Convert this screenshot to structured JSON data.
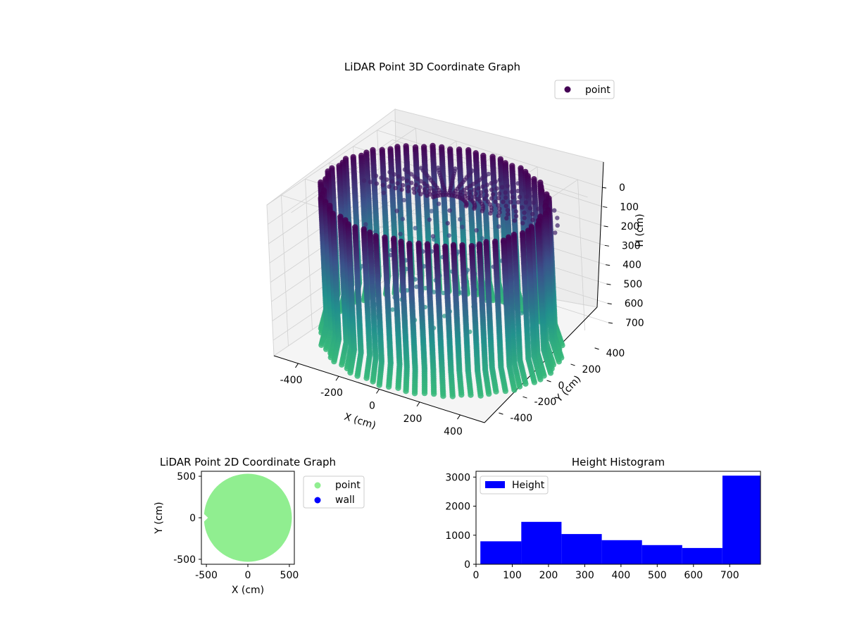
{
  "figure": {
    "background": "#ffffff"
  },
  "chart_data": [
    {
      "id": "scatter3d",
      "type": "scatter",
      "projection": "3d",
      "title": "LiDAR Point 3D Coordinate Graph",
      "xlabel": "X (cm)",
      "ylabel": "Y (cm)",
      "zlabel": "H (cm)",
      "xticks": [
        -400,
        -200,
        0,
        200,
        400
      ],
      "yticks": [
        400,
        200,
        0,
        -200,
        -400
      ],
      "zticks": [
        0,
        100,
        200,
        300,
        400,
        500,
        600,
        700
      ],
      "xlim": [
        -520,
        520
      ],
      "ylim": [
        -520,
        520
      ],
      "zlim": [
        0,
        780
      ],
      "z_axis_inverted": true,
      "legend": {
        "placement": "top-right",
        "entries": [
          "point"
        ]
      },
      "colormap": "viridis",
      "colormap_range": [
        "#440154",
        "#3b528b",
        "#21908d",
        "#35b779"
      ],
      "grid": true,
      "description_of_points": "points on a cylindrical wall of radius ~500 cm from H 0 to ~760, plus a ceiling fan of strands",
      "series": [
        {
          "name": "point",
          "color": "#440154"
        }
      ]
    },
    {
      "id": "scatter2d",
      "type": "scatter",
      "title": "LiDAR Point 2D Coordinate Graph",
      "xlabel": "X (cm)",
      "ylabel": "Y (cm)",
      "xticks": [
        -500,
        0,
        500
      ],
      "yticks": [
        500,
        0,
        -500
      ],
      "xlim": [
        -560,
        560
      ],
      "ylim": [
        -560,
        560
      ],
      "grid": false,
      "legend": {
        "placement": "outside-right",
        "entries": [
          "point",
          "wall"
        ]
      },
      "series": [
        {
          "name": "point",
          "color": "#90ee90",
          "shape": "filled disk of radius ~530 cm centered at (0,0)"
        },
        {
          "name": "wall",
          "color": "#0000ff"
        }
      ]
    },
    {
      "id": "histogram",
      "type": "bar",
      "title": "Height Histogram",
      "xticks": [
        0,
        100,
        200,
        300,
        400,
        500,
        600,
        700
      ],
      "yticks": [
        0,
        1000,
        2000,
        3000
      ],
      "xlim": [
        0,
        785
      ],
      "ylim": [
        0,
        3200
      ],
      "grid": false,
      "legend": {
        "placement": "top-left",
        "entries": [
          "Height"
        ]
      },
      "series": [
        {
          "name": "Height",
          "color": "#0000ff"
        }
      ],
      "bins": [
        {
          "x0": 12,
          "x1": 125,
          "value": 790
        },
        {
          "x0": 125,
          "x1": 236,
          "value": 1460
        },
        {
          "x0": 236,
          "x1": 347,
          "value": 1040
        },
        {
          "x0": 347,
          "x1": 458,
          "value": 830
        },
        {
          "x0": 458,
          "x1": 569,
          "value": 660
        },
        {
          "x0": 569,
          "x1": 680,
          "value": 560
        },
        {
          "x0": 680,
          "x1": 785,
          "value": 3050
        }
      ]
    }
  ]
}
